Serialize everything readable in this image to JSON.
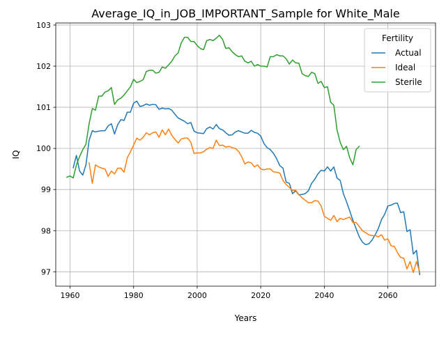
{
  "chart_data": {
    "type": "line",
    "title": "Average_IQ_in_JOB_IMPORTANT_Sample for White_Male",
    "xlabel": "Years",
    "ylabel": "IQ",
    "xlim": [
      1955.5,
      2075
    ],
    "ylim": [
      96.65,
      103.05
    ],
    "xticks": [
      1960,
      1980,
      2000,
      2020,
      2040,
      2060
    ],
    "yticks": [
      97,
      98,
      99,
      100,
      101,
      102,
      103
    ],
    "grid": true,
    "legend": {
      "title": "Fertility",
      "placement": "top-right"
    },
    "series": [
      {
        "name": "Actual",
        "color": "#1f77b4",
        "points": [
          [
            1961,
            99.53
          ],
          [
            1962,
            99.83
          ],
          [
            1963,
            99.45
          ],
          [
            1964,
            99.35
          ],
          [
            1965,
            99.6
          ],
          [
            1966,
            100.2
          ],
          [
            1967,
            100.43
          ],
          [
            1968,
            100.4
          ],
          [
            1969,
            100.42
          ],
          [
            1970,
            100.43
          ],
          [
            1971,
            100.43
          ],
          [
            1972,
            100.55
          ],
          [
            1973,
            100.6
          ],
          [
            1974,
            100.35
          ],
          [
            1975,
            100.58
          ],
          [
            1976,
            100.7
          ],
          [
            1977,
            100.68
          ],
          [
            1978,
            100.88
          ],
          [
            1979,
            100.88
          ],
          [
            1980,
            101.1
          ],
          [
            1981,
            101.15
          ],
          [
            1982,
            101.02
          ],
          [
            1983,
            101.04
          ],
          [
            1984,
            101.08
          ],
          [
            1985,
            101.05
          ],
          [
            1986,
            101.07
          ],
          [
            1987,
            101.06
          ],
          [
            1988,
            100.95
          ],
          [
            1989,
            100.98
          ],
          [
            1990,
            100.96
          ],
          [
            1991,
            100.97
          ],
          [
            1992,
            100.93
          ],
          [
            1993,
            100.83
          ],
          [
            1994,
            100.74
          ],
          [
            1995,
            100.7
          ],
          [
            1996,
            100.66
          ],
          [
            1997,
            100.6
          ],
          [
            1998,
            100.63
          ],
          [
            1999,
            100.42
          ],
          [
            2000,
            100.38
          ],
          [
            2001,
            100.37
          ],
          [
            2002,
            100.36
          ],
          [
            2003,
            100.48
          ],
          [
            2004,
            100.52
          ],
          [
            2005,
            100.47
          ],
          [
            2006,
            100.58
          ],
          [
            2007,
            100.48
          ],
          [
            2008,
            100.45
          ],
          [
            2009,
            100.38
          ],
          [
            2010,
            100.32
          ],
          [
            2011,
            100.33
          ],
          [
            2012,
            100.4
          ],
          [
            2013,
            100.43
          ],
          [
            2014,
            100.4
          ],
          [
            2015,
            100.37
          ],
          [
            2016,
            100.37
          ],
          [
            2017,
            100.44
          ],
          [
            2018,
            100.39
          ],
          [
            2019,
            100.37
          ],
          [
            2020,
            100.3
          ],
          [
            2021,
            100.12
          ],
          [
            2022,
            100.02
          ],
          [
            2023,
            99.97
          ],
          [
            2024,
            99.88
          ],
          [
            2025,
            99.75
          ],
          [
            2026,
            99.58
          ],
          [
            2027,
            99.52
          ],
          [
            2028,
            99.18
          ],
          [
            2029,
            99.15
          ],
          [
            2030,
            98.9
          ],
          [
            2031,
            98.97
          ],
          [
            2032,
            98.87
          ],
          [
            2033,
            98.88
          ],
          [
            2034,
            98.9
          ],
          [
            2035,
            98.97
          ],
          [
            2036,
            99.15
          ],
          [
            2037,
            99.25
          ],
          [
            2038,
            99.38
          ],
          [
            2039,
            99.47
          ],
          [
            2040,
            99.45
          ],
          [
            2041,
            99.55
          ],
          [
            2042,
            99.45
          ],
          [
            2043,
            99.55
          ],
          [
            2044,
            99.28
          ],
          [
            2045,
            99.22
          ],
          [
            2046,
            98.9
          ],
          [
            2047,
            98.7
          ],
          [
            2048,
            98.48
          ],
          [
            2049,
            98.25
          ],
          [
            2050,
            98.05
          ],
          [
            2051,
            97.85
          ],
          [
            2052,
            97.72
          ],
          [
            2053,
            97.66
          ],
          [
            2054,
            97.68
          ],
          [
            2055,
            97.77
          ],
          [
            2056,
            97.9
          ],
          [
            2057,
            98.05
          ],
          [
            2058,
            98.27
          ],
          [
            2059,
            98.4
          ],
          [
            2060,
            98.6
          ],
          [
            2061,
            98.62
          ],
          [
            2062,
            98.66
          ],
          [
            2063,
            98.67
          ],
          [
            2064,
            98.44
          ],
          [
            2065,
            98.46
          ],
          [
            2066,
            97.98
          ],
          [
            2067,
            98.02
          ],
          [
            2068,
            97.43
          ],
          [
            2069,
            97.52
          ],
          [
            2070,
            96.93
          ]
        ]
      },
      {
        "name": "Ideal",
        "color": "#ff7f0e",
        "points": [
          [
            1966,
            99.65
          ],
          [
            1967,
            99.15
          ],
          [
            1968,
            99.6
          ],
          [
            1969,
            99.55
          ],
          [
            1970,
            99.52
          ],
          [
            1971,
            99.5
          ],
          [
            1972,
            99.32
          ],
          [
            1973,
            99.45
          ],
          [
            1974,
            99.38
          ],
          [
            1975,
            99.52
          ],
          [
            1976,
            99.52
          ],
          [
            1977,
            99.42
          ],
          [
            1978,
            99.77
          ],
          [
            1979,
            99.92
          ],
          [
            1980,
            100.08
          ],
          [
            1981,
            100.25
          ],
          [
            1982,
            100.2
          ],
          [
            1983,
            100.27
          ],
          [
            1984,
            100.38
          ],
          [
            1985,
            100.33
          ],
          [
            1986,
            100.38
          ],
          [
            1987,
            100.4
          ],
          [
            1988,
            100.27
          ],
          [
            1989,
            100.45
          ],
          [
            1990,
            100.33
          ],
          [
            1991,
            100.47
          ],
          [
            1992,
            100.32
          ],
          [
            1993,
            100.22
          ],
          [
            1994,
            100.13
          ],
          [
            1995,
            100.23
          ],
          [
            1996,
            100.25
          ],
          [
            1997,
            100.25
          ],
          [
            1998,
            100.15
          ],
          [
            1999,
            99.88
          ],
          [
            2000,
            99.89
          ],
          [
            2001,
            99.89
          ],
          [
            2002,
            99.92
          ],
          [
            2003,
            99.98
          ],
          [
            2004,
            100.02
          ],
          [
            2005,
            100.0
          ],
          [
            2006,
            100.2
          ],
          [
            2007,
            100.07
          ],
          [
            2008,
            100.08
          ],
          [
            2009,
            100.03
          ],
          [
            2010,
            100.05
          ],
          [
            2011,
            100.02
          ],
          [
            2012,
            100.0
          ],
          [
            2013,
            99.93
          ],
          [
            2014,
            99.8
          ],
          [
            2015,
            99.62
          ],
          [
            2016,
            99.67
          ],
          [
            2017,
            99.65
          ],
          [
            2018,
            99.55
          ],
          [
            2019,
            99.6
          ],
          [
            2020,
            99.5
          ],
          [
            2021,
            99.48
          ],
          [
            2022,
            99.5
          ],
          [
            2023,
            99.5
          ],
          [
            2024,
            99.43
          ],
          [
            2025,
            99.42
          ],
          [
            2026,
            99.4
          ],
          [
            2027,
            99.22
          ],
          [
            2028,
            99.12
          ],
          [
            2029,
            99.05
          ],
          [
            2030,
            98.98
          ],
          [
            2031,
            98.98
          ],
          [
            2032,
            98.88
          ],
          [
            2033,
            98.8
          ],
          [
            2034,
            98.74
          ],
          [
            2035,
            98.68
          ],
          [
            2036,
            98.68
          ],
          [
            2037,
            98.73
          ],
          [
            2038,
            98.72
          ],
          [
            2039,
            98.6
          ],
          [
            2040,
            98.35
          ],
          [
            2041,
            98.3
          ],
          [
            2042,
            98.25
          ],
          [
            2043,
            98.37
          ],
          [
            2044,
            98.22
          ],
          [
            2045,
            98.3
          ],
          [
            2046,
            98.27
          ],
          [
            2047,
            98.3
          ],
          [
            2048,
            98.33
          ],
          [
            2049,
            98.2
          ],
          [
            2050,
            98.2
          ],
          [
            2051,
            98.1
          ],
          [
            2052,
            98.0
          ],
          [
            2053,
            97.95
          ],
          [
            2054,
            97.9
          ],
          [
            2055,
            97.88
          ],
          [
            2056,
            97.88
          ],
          [
            2057,
            97.85
          ],
          [
            2058,
            97.9
          ],
          [
            2059,
            97.77
          ],
          [
            2060,
            97.8
          ],
          [
            2061,
            97.63
          ],
          [
            2062,
            97.62
          ],
          [
            2063,
            97.47
          ],
          [
            2064,
            97.35
          ],
          [
            2065,
            97.33
          ],
          [
            2066,
            97.07
          ],
          [
            2067,
            97.25
          ],
          [
            2068,
            96.98
          ],
          [
            2069,
            97.25
          ],
          [
            2070,
            97.0
          ]
        ]
      },
      {
        "name": "Sterile",
        "color": "#2ca02c",
        "points": [
          [
            1959,
            99.3
          ],
          [
            1960,
            99.33
          ],
          [
            1961,
            99.28
          ],
          [
            1962,
            99.6
          ],
          [
            1963,
            99.8
          ],
          [
            1964,
            99.97
          ],
          [
            1965,
            100.1
          ],
          [
            1966,
            100.6
          ],
          [
            1967,
            100.97
          ],
          [
            1968,
            100.93
          ],
          [
            1969,
            101.27
          ],
          [
            1970,
            101.27
          ],
          [
            1971,
            101.37
          ],
          [
            1972,
            101.4
          ],
          [
            1973,
            101.48
          ],
          [
            1974,
            101.07
          ],
          [
            1975,
            101.18
          ],
          [
            1976,
            101.22
          ],
          [
            1977,
            101.3
          ],
          [
            1978,
            101.4
          ],
          [
            1979,
            101.5
          ],
          [
            1980,
            101.68
          ],
          [
            1981,
            101.6
          ],
          [
            1982,
            101.63
          ],
          [
            1983,
            101.67
          ],
          [
            1984,
            101.87
          ],
          [
            1985,
            101.9
          ],
          [
            1986,
            101.9
          ],
          [
            1987,
            101.83
          ],
          [
            1988,
            101.85
          ],
          [
            1989,
            101.98
          ],
          [
            1990,
            101.95
          ],
          [
            1991,
            102.03
          ],
          [
            1992,
            102.12
          ],
          [
            1993,
            102.25
          ],
          [
            1994,
            102.32
          ],
          [
            1995,
            102.57
          ],
          [
            1996,
            102.7
          ],
          [
            1997,
            102.7
          ],
          [
            1998,
            102.6
          ],
          [
            1999,
            102.6
          ],
          [
            2000,
            102.5
          ],
          [
            2001,
            102.43
          ],
          [
            2002,
            102.4
          ],
          [
            2003,
            102.62
          ],
          [
            2004,
            102.65
          ],
          [
            2005,
            102.62
          ],
          [
            2006,
            102.68
          ],
          [
            2007,
            102.75
          ],
          [
            2008,
            102.65
          ],
          [
            2009,
            102.43
          ],
          [
            2010,
            102.45
          ],
          [
            2011,
            102.35
          ],
          [
            2012,
            102.28
          ],
          [
            2013,
            102.23
          ],
          [
            2014,
            102.25
          ],
          [
            2015,
            102.12
          ],
          [
            2016,
            102.08
          ],
          [
            2017,
            102.12
          ],
          [
            2018,
            102.0
          ],
          [
            2019,
            102.04
          ],
          [
            2020,
            102.0
          ],
          [
            2021,
            102.0
          ],
          [
            2022,
            101.98
          ],
          [
            2023,
            102.23
          ],
          [
            2024,
            102.23
          ],
          [
            2025,
            102.28
          ],
          [
            2026,
            102.25
          ],
          [
            2027,
            102.25
          ],
          [
            2028,
            102.18
          ],
          [
            2029,
            102.05
          ],
          [
            2030,
            102.15
          ],
          [
            2031,
            102.08
          ],
          [
            2032,
            102.07
          ],
          [
            2033,
            101.82
          ],
          [
            2034,
            101.77
          ],
          [
            2035,
            101.75
          ],
          [
            2036,
            101.85
          ],
          [
            2037,
            101.82
          ],
          [
            2038,
            101.58
          ],
          [
            2039,
            101.63
          ],
          [
            2040,
            101.48
          ],
          [
            2041,
            101.5
          ],
          [
            2042,
            101.12
          ],
          [
            2043,
            101.05
          ],
          [
            2044,
            100.45
          ],
          [
            2045,
            100.15
          ],
          [
            2046,
            99.97
          ],
          [
            2047,
            100.05
          ],
          [
            2048,
            99.77
          ],
          [
            2049,
            99.6
          ],
          [
            2050,
            99.97
          ],
          [
            2051,
            100.05
          ]
        ]
      }
    ]
  }
}
